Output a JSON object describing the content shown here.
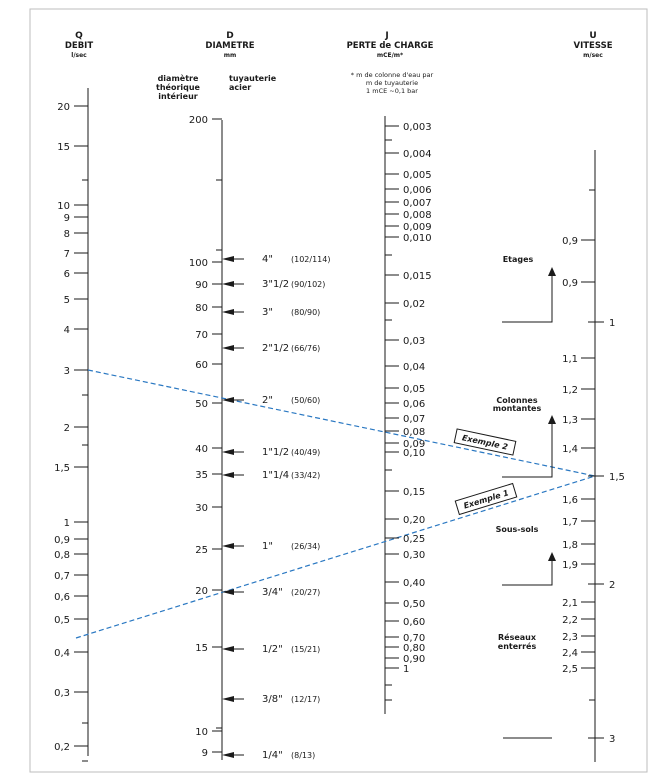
{
  "headers": {
    "q": {
      "letter": "Q",
      "name": "DEBIT",
      "unit": "l/sec"
    },
    "d": {
      "letter": "D",
      "name": "DIAMETRE",
      "unit": "mm"
    },
    "j": {
      "letter": "J",
      "name": "PERTE de CHARGE",
      "unit": "mCE/m*"
    },
    "u": {
      "letter": "U",
      "name": "VITESSE",
      "unit": "m/sec"
    }
  },
  "d_subheaders": {
    "left": [
      "diamètre",
      "théorique",
      "intérieur"
    ],
    "right": [
      "tuyauterie",
      "acier"
    ]
  },
  "j_note": [
    "* m de colonne d'eau par",
    "m de tuyauterie",
    "1 mCE ~0,1 bar"
  ],
  "q_scale": [
    "20",
    "15",
    "10",
    "9",
    "8",
    "7",
    "6",
    "5",
    "4",
    "3",
    "2",
    "1,5",
    "1",
    "0,9",
    "0,8",
    "0,7",
    "0,6",
    "0,5",
    "0,4",
    "0,3",
    "0,2"
  ],
  "d_scale": [
    "200",
    "100",
    "90",
    "80",
    "70",
    "60",
    "50",
    "40",
    "35",
    "30",
    "25",
    "20",
    "15",
    "10",
    "9"
  ],
  "pipes": [
    {
      "size": "4\"",
      "range": "(102/114)"
    },
    {
      "size": "3\"1/2",
      "range": "(90/102)"
    },
    {
      "size": "3\"",
      "range": "(80/90)"
    },
    {
      "size": "2\"1/2",
      "range": "(66/76)"
    },
    {
      "size": "2\"",
      "range": "(50/60)"
    },
    {
      "size": "1\"1/2",
      "range": "(40/49)"
    },
    {
      "size": "1\"1/4",
      "range": "(33/42)"
    },
    {
      "size": "1\"",
      "range": "(26/34)"
    },
    {
      "size": "3/4\"",
      "range": "(20/27)"
    },
    {
      "size": "1/2\"",
      "range": "(15/21)"
    },
    {
      "size": "3/8\"",
      "range": "(12/17)"
    },
    {
      "size": "1/4\"",
      "range": "(8/13)"
    }
  ],
  "j_scale": [
    "0,003",
    "0,004",
    "0,005",
    "0,006",
    "0,007",
    "0,008",
    "0,009",
    "0,010",
    "0,015",
    "0,02",
    "0,03",
    "0,04",
    "0,05",
    "0,06",
    "0,07",
    "0,08",
    "0,09",
    "0,10",
    "0,15",
    "0,20",
    "0,25",
    "0,30",
    "0,40",
    "0,50",
    "0,60",
    "0,70",
    "0,80",
    "0,90",
    "1"
  ],
  "u_scale": [
    "0,9",
    "0,9",
    "1",
    "1,1",
    "1,2",
    "1,3",
    "1,4",
    "1,5",
    "1,6",
    "1,7",
    "1,8",
    "1,9",
    "2",
    "2,1",
    "2,2",
    "2,3",
    "2,4",
    "2,5",
    "3"
  ],
  "zones": {
    "etages": [
      "Etages"
    ],
    "colonnes": [
      "Colonnes",
      "montantes"
    ],
    "sous_sols": [
      "Sous-sols"
    ],
    "reseaux": [
      "Réseaux",
      "enterrés"
    ]
  },
  "examples": {
    "ex1": "Exemple 1",
    "ex2": "Exemple 2"
  },
  "colors": {
    "line": "#1a1a1a",
    "dashed": "#2a78c2",
    "frame": "#bdbdbd"
  }
}
